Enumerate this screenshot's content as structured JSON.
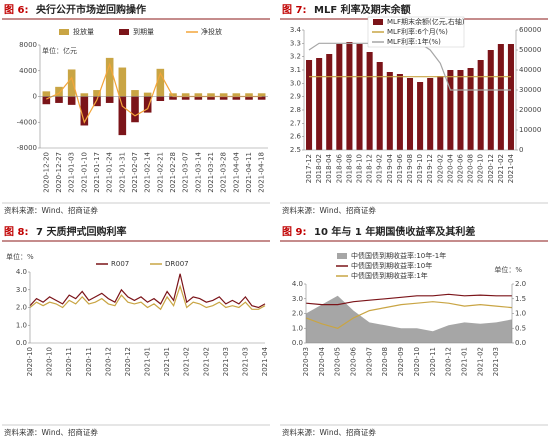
{
  "chart_data": [
    {
      "type": "bar",
      "figure_label": "图 6:",
      "title": "央行公开市场逆回购操作",
      "source": "资料来源：Wind、招商证券",
      "unit": "单位：亿元",
      "categories": [
        "2020-12-20",
        "2020-12-27",
        "2021-01-03",
        "2021-01-10",
        "2021-01-17",
        "2021-01-24",
        "2021-01-31",
        "2021-02-07",
        "2021-02-14",
        "2021-02-21",
        "2021-02-28",
        "2021-03-07",
        "2021-03-14",
        "2021-03-21",
        "2021-03-28",
        "2021-04-04",
        "2021-04-11",
        "2021-04-18"
      ],
      "series": [
        {
          "name": "投放量",
          "type": "bar",
          "color": "#c9a544",
          "values": [
            800,
            1500,
            4200,
            500,
            1000,
            6000,
            4500,
            1000,
            600,
            4300,
            500,
            500,
            500,
            500,
            500,
            500,
            500,
            500
          ]
        },
        {
          "name": "到期量",
          "type": "bar",
          "color": "#7b1419",
          "values": [
            -1200,
            -1000,
            -1300,
            -4500,
            -1500,
            -1000,
            -6000,
            -4000,
            -2500,
            -700,
            -500,
            -500,
            -500,
            -500,
            -500,
            -500,
            -500,
            -500
          ]
        },
        {
          "name": "净投放",
          "type": "line",
          "color": "#f3a53a",
          "values": [
            -400,
            500,
            2900,
            -4000,
            -500,
            5000,
            -1500,
            -3000,
            -1900,
            3600,
            0,
            0,
            0,
            0,
            0,
            0,
            0,
            0
          ]
        }
      ],
      "ylim": [
        -8000,
        8000
      ],
      "yticks": [
        -8000,
        -4000,
        0,
        4000,
        8000
      ]
    },
    {
      "type": "bar",
      "figure_label": "图 7:",
      "title": "MLF 利率及期末余额",
      "source": "资料来源：Wind、招商证券",
      "categories": [
        "2017-12",
        "2018-02",
        "2018-04",
        "2018-06",
        "2018-08",
        "2018-10",
        "2018-12",
        "2019-02",
        "2019-04",
        "2019-06",
        "2019-08",
        "2019-10",
        "2019-12",
        "2020-02",
        "2020-04",
        "2020-06",
        "2020-08",
        "2020-10",
        "2020-12",
        "2021-02",
        "2021-04"
      ],
      "series": [
        {
          "name": "MLF期末余额(亿元,右轴)",
          "type": "bar",
          "axis": "y2",
          "color": "#7b1419",
          "values": [
            45000,
            46000,
            48000,
            53000,
            54000,
            53000,
            49000,
            44000,
            39000,
            38000,
            36000,
            34000,
            36000,
            37000,
            40000,
            40000,
            41000,
            45000,
            50000,
            53000,
            53000
          ]
        },
        {
          "name": "MLF利率:6个月(%)",
          "type": "line",
          "color": "#c9a544",
          "values": [
            3.05,
            3.05,
            3.05,
            3.05,
            3.05,
            3.05,
            3.05,
            3.05,
            3.05,
            3.05,
            3.05,
            3.05,
            3.05,
            3.05,
            3.05,
            3.05,
            3.05,
            3.05,
            3.05,
            3.05,
            3.05
          ]
        },
        {
          "name": "MLF利率:1年(%)",
          "type": "line",
          "color": "#a6a6a6",
          "values": [
            3.25,
            3.3,
            3.3,
            3.3,
            3.3,
            3.3,
            3.3,
            3.3,
            3.3,
            3.3,
            3.3,
            3.3,
            3.25,
            3.15,
            2.95,
            2.95,
            2.95,
            2.95,
            2.95,
            2.95,
            2.95
          ]
        }
      ],
      "ylim": [
        2.5,
        3.4
      ],
      "yticks": [
        2.5,
        2.6,
        2.7,
        2.8,
        2.9,
        {
          "value": 3,
          "label": "3.0"
        },
        3.1,
        3.2,
        3.3,
        3.4
      ],
      "y2lim": [
        0,
        60000
      ],
      "y2ticks": [
        0,
        10000,
        20000,
        30000,
        40000,
        50000,
        60000
      ]
    },
    {
      "type": "line",
      "figure_label": "图 8:",
      "title": "7 天质押式回购利率",
      "source": "资料来源：Wind、招商证券",
      "unit": "单位：%",
      "categories": [
        "2020-10",
        null,
        null,
        "2020-10",
        null,
        null,
        "2020-11",
        null,
        null,
        "2020-11",
        null,
        null,
        "2020-12",
        null,
        null,
        "2020-12",
        null,
        null,
        "2021-01",
        null,
        null,
        "2021-01",
        null,
        null,
        "2021-02",
        null,
        null,
        "2021-02",
        null,
        null,
        "2021-03",
        null,
        null,
        "2021-03",
        null,
        null,
        "2021-04"
      ],
      "series": [
        {
          "name": "R007",
          "type": "line",
          "color": "#7b1419",
          "values": [
            2.1,
            2.5,
            2.3,
            2.6,
            2.4,
            2.2,
            2.7,
            2.5,
            2.9,
            2.4,
            2.6,
            2.8,
            2.5,
            2.3,
            3.0,
            2.6,
            2.4,
            2.6,
            2.3,
            2.5,
            2.2,
            2.9,
            2.4,
            3.9,
            2.3,
            2.6,
            2.5,
            2.3,
            2.4,
            2.6,
            2.2,
            2.4,
            2.2,
            2.6,
            2.1,
            2.0,
            2.2
          ]
        },
        {
          "name": "DR007",
          "type": "line",
          "color": "#c9a544",
          "values": [
            2.0,
            2.3,
            2.1,
            2.3,
            2.2,
            2.0,
            2.4,
            2.2,
            2.6,
            2.2,
            2.3,
            2.5,
            2.2,
            2.1,
            2.7,
            2.3,
            2.2,
            2.3,
            2.0,
            2.2,
            1.9,
            2.6,
            2.1,
            3.2,
            2.0,
            2.3,
            2.2,
            2.0,
            2.1,
            2.3,
            2.0,
            2.1,
            2.0,
            2.3,
            1.9,
            1.9,
            2.1
          ]
        }
      ],
      "ylim": [
        0,
        4
      ],
      "yticks": [
        {
          "value": 0,
          "label": "0.0"
        },
        {
          "value": 1,
          "label": "1.0"
        },
        {
          "value": 2,
          "label": "2.0"
        },
        {
          "value": 3,
          "label": "3.0"
        },
        {
          "value": 4,
          "label": "4.0"
        }
      ]
    },
    {
      "type": "line",
      "figure_label": "图 9:",
      "title": "10 年与 1 年期国债收益率及其利差",
      "source": "资料来源：Wind、招商证券",
      "unit_right": "单位：%",
      "categories": [
        "2020-03",
        "2020-04",
        "2020-05",
        "2020-06",
        "2020-07",
        "2020-08",
        "2020-09",
        "2020-10",
        "2020-11",
        "2020-12",
        "2021-01",
        "2021-02",
        "2021-03",
        null
      ],
      "series": [
        {
          "name": "中债国债到期收益率:10年-1年",
          "type": "area",
          "axis": "y2",
          "color": "#a6a6a6",
          "values": [
            1.0,
            1.3,
            1.6,
            1.1,
            0.7,
            0.6,
            0.5,
            0.5,
            0.4,
            0.6,
            0.7,
            0.65,
            0.7,
            0.8
          ]
        },
        {
          "name": "中债国债到期收益率:10年",
          "type": "line",
          "color": "#7b1419",
          "values": [
            2.7,
            2.6,
            2.6,
            2.8,
            2.9,
            3.0,
            3.1,
            3.2,
            3.2,
            3.3,
            3.2,
            3.25,
            3.2,
            3.2
          ]
        },
        {
          "name": "中债国债到期收益率:1年",
          "type": "line",
          "color": "#c9a544",
          "values": [
            1.7,
            1.3,
            1.0,
            1.7,
            2.2,
            2.4,
            2.6,
            2.7,
            2.8,
            2.7,
            2.5,
            2.6,
            2.5,
            2.4
          ]
        }
      ],
      "ylim": [
        0,
        4
      ],
      "yticks": [
        {
          "value": 0,
          "label": "0.0"
        },
        {
          "value": 1,
          "label": "1.0"
        },
        {
          "value": 2,
          "label": "2.0"
        },
        {
          "value": 3,
          "label": "3.0"
        },
        {
          "value": 4,
          "label": "4.0"
        }
      ],
      "y2lim": [
        0,
        2
      ],
      "y2ticks": [
        {
          "value": 0,
          "label": "0.0"
        },
        0.5,
        {
          "value": 1,
          "label": "1.0"
        },
        1.5,
        {
          "value": 2,
          "label": "2.0"
        }
      ]
    }
  ]
}
